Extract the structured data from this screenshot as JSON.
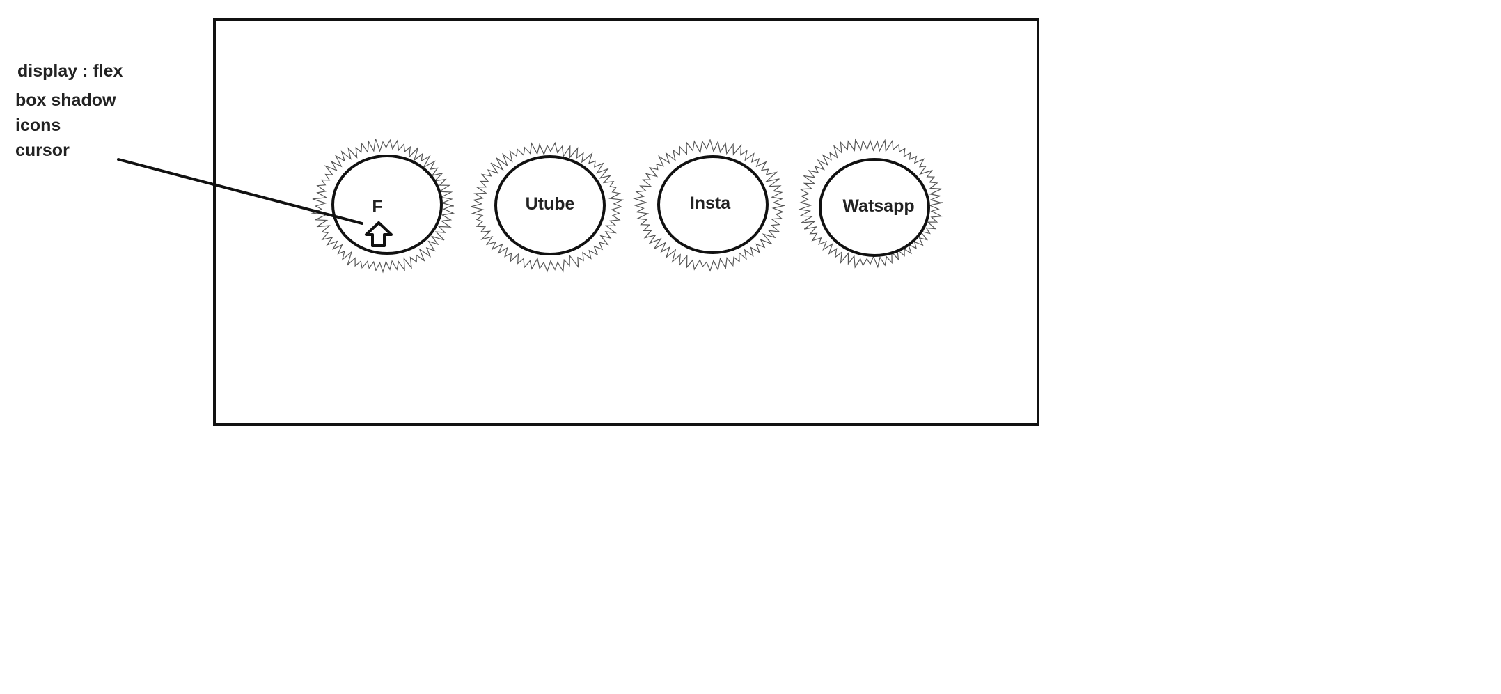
{
  "annotations": {
    "notes": [
      "display : flex",
      "box shadow",
      "icons",
      "cursor"
    ]
  },
  "buttons": [
    {
      "label": "F"
    },
    {
      "label": "Utube"
    },
    {
      "label": "Insta"
    },
    {
      "label": "Watsapp"
    }
  ],
  "colors": {
    "stroke": "#111111",
    "shadow": "#555555",
    "text": "#222222"
  }
}
